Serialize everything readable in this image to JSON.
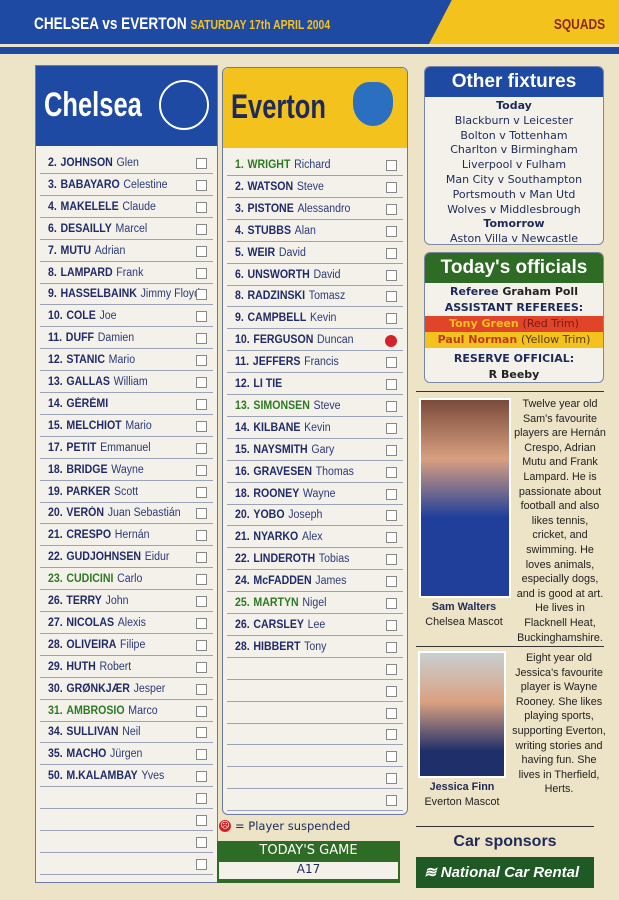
{
  "header": {
    "match": "CHELSEA vs EVERTON",
    "date": "SATURDAY 17th APRIL 2004",
    "section": "SQUADS"
  },
  "chelsea": {
    "name": "Chelsea",
    "crest": "CFC",
    "players": [
      [
        "2.",
        "JOHNSON",
        "Glen"
      ],
      [
        "3.",
        "BABAYARO",
        "Celestine"
      ],
      [
        "4.",
        "MAKELELE",
        "Claude"
      ],
      [
        "6.",
        "DESAILLY",
        "Marcel"
      ],
      [
        "7.",
        "MUTU",
        "Adrian"
      ],
      [
        "8.",
        "LAMPARD",
        "Frank"
      ],
      [
        "9.",
        "HASSELBAINK",
        "Jimmy Floyd"
      ],
      [
        "10.",
        "COLE",
        "Joe"
      ],
      [
        "11.",
        "DUFF",
        "Damien"
      ],
      [
        "12.",
        "STANIC",
        "Mario"
      ],
      [
        "13.",
        "GALLAS",
        "William"
      ],
      [
        "14.",
        "GÉRÉMI",
        ""
      ],
      [
        "15.",
        "MELCHIOT",
        "Mario"
      ],
      [
        "17.",
        "PETIT",
        "Emmanuel"
      ],
      [
        "18.",
        "BRIDGE",
        "Wayne"
      ],
      [
        "19.",
        "PARKER",
        "Scott"
      ],
      [
        "20.",
        "VERÓN",
        "Juan Sebastián"
      ],
      [
        "21.",
        "CRESPO",
        "Hernán"
      ],
      [
        "22.",
        "GUDJOHNSEN",
        "Eidur"
      ],
      [
        "23.",
        "CUDICINI",
        "Carlo"
      ],
      [
        "26.",
        "TERRY",
        "John"
      ],
      [
        "27.",
        "NICOLAS",
        "Alexis"
      ],
      [
        "28.",
        "OLIVEIRA",
        "Filipe"
      ],
      [
        "29.",
        "HUTH",
        "Robert"
      ],
      [
        "30.",
        "GRØNKJÆR",
        "Jesper"
      ],
      [
        "31.",
        "AMBROSIO",
        "Marco"
      ],
      [
        "34.",
        "SULLIVAN",
        "Neil"
      ],
      [
        "35.",
        "MACHO",
        "Jürgen"
      ],
      [
        "50.",
        "M.KALAMBAY",
        "Yves"
      ]
    ],
    "goalkeepers": [
      "23.",
      "31."
    ]
  },
  "everton": {
    "name": "Everton",
    "crest": "Everton",
    "players": [
      [
        "1.",
        "WRIGHT",
        "Richard"
      ],
      [
        "2.",
        "WATSON",
        "Steve"
      ],
      [
        "3.",
        "PISTONE",
        "Alessandro"
      ],
      [
        "4.",
        "STUBBS",
        "Alan"
      ],
      [
        "5.",
        "WEIR",
        "David"
      ],
      [
        "6.",
        "UNSWORTH",
        "David"
      ],
      [
        "8.",
        "RADZINSKI",
        "Tomasz"
      ],
      [
        "9.",
        "CAMPBELL",
        "Kevin"
      ],
      [
        "10.",
        "FERGUSON",
        "Duncan"
      ],
      [
        "11.",
        "JEFFERS",
        "Francis"
      ],
      [
        "12.",
        "LI TIE",
        ""
      ],
      [
        "13.",
        "SIMONSEN",
        "Steve"
      ],
      [
        "14.",
        "KILBANE",
        "Kevin"
      ],
      [
        "15.",
        "NAYSMITH",
        "Gary"
      ],
      [
        "16.",
        "GRAVESEN",
        "Thomas"
      ],
      [
        "18.",
        "ROONEY",
        "Wayne"
      ],
      [
        "20.",
        "YOBO",
        "Joseph"
      ],
      [
        "21.",
        "NYARKO",
        "Alex"
      ],
      [
        "22.",
        "LINDEROTH",
        "Tobias"
      ],
      [
        "24.",
        "McFADDEN",
        "James"
      ],
      [
        "25.",
        "MARTYN",
        "Nigel"
      ],
      [
        "26.",
        "CARSLEY",
        "Lee"
      ],
      [
        "28.",
        "HIBBERT",
        "Tony"
      ]
    ],
    "goalkeepers": [
      "1.",
      "13.",
      "25."
    ],
    "suspended": "10."
  },
  "legend": {
    "suspended": "= Player suspended"
  },
  "todays_game": {
    "title": "TODAY'S GAME",
    "value": "A17"
  },
  "fixtures": {
    "title": "Other fixtures",
    "today_label": "Today",
    "today": [
      "Blackburn v Leicester",
      "Bolton v Tottenham",
      "Charlton v Birmingham",
      "Liverpool v Fulham",
      "Man City v Southampton",
      "Portsmouth v Man Utd",
      "Wolves v Middlesbrough"
    ],
    "tomorrow_label": "Tomorrow",
    "tomorrow": [
      "Aston Villa v Newcastle"
    ]
  },
  "officials": {
    "title": "Today's officials",
    "referee_label": "Referee",
    "referee": "Graham Poll",
    "assistants_label": "ASSISTANT REFEREES:",
    "assistant1": "Tony Green",
    "assistant1_trim": "(Red Trim)",
    "assistant2": "Paul Norman",
    "assistant2_trim": "(Yellow Trim)",
    "reserve_label": "RESERVE OFFICIAL:",
    "reserve": "R Beeby"
  },
  "mascots": [
    {
      "name": "Sam Walters",
      "role": "Chelsea Mascot",
      "bio": "Twelve year old Sam's favourite players are Hernán Crespo, Adrian Mutu and Frank Lampard. He is passionate about football and also likes tennis, cricket, and swimming. He loves animals, especially dogs, and is good at art. He lives in Flacknell Heat, Buckinghamshire."
    },
    {
      "name": "Jessica Finn",
      "role": "Everton Mascot",
      "bio": "Eight year old Jessica's favourite player is Wayne Rooney. She likes playing sports, supporting Everton, writing stories and having fun. She lives in Therfield, Herts."
    }
  ],
  "sponsors": {
    "title": "Car sponsors",
    "logo": "National Car Rental"
  },
  "colors": {
    "blue": "#1f4aa3",
    "yellow": "#f4c21c",
    "green": "#2e6b24",
    "red": "#e0452a"
  }
}
